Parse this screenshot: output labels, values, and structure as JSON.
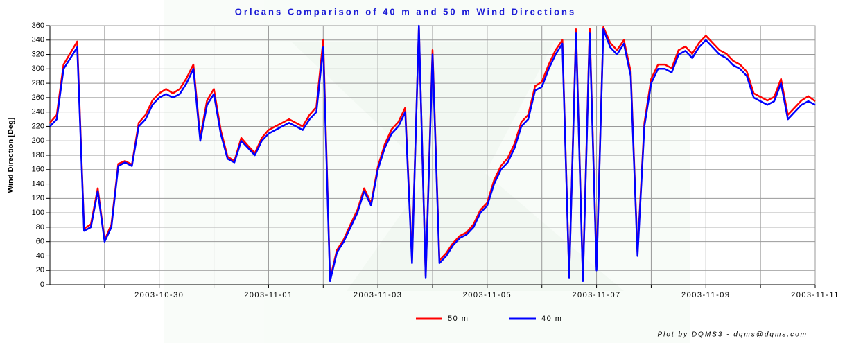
{
  "chart_data": {
    "type": "line",
    "title": "Orleans Comparison of 40 m and 50 m Wind Directions",
    "y_label": "Wind Direction [Deg]",
    "footer": "Plot by DQMS3 - dqms@dqms.com",
    "grid": true,
    "legend": "bottom",
    "xlim": [
      "2003-10-28 00:00",
      "2003-11-11 00:00"
    ],
    "xticks": [
      {
        "value": "2003-10-29",
        "label": null
      },
      "2003-10-30",
      {
        "value": "2003-10-31",
        "label": null
      },
      "2003-11-01",
      {
        "value": "2003-11-02",
        "label": null
      },
      "2003-11-03",
      {
        "value": "2003-11-04",
        "label": null
      },
      "2003-11-05",
      {
        "value": "2003-11-06",
        "label": null
      },
      "2003-11-07",
      {
        "value": "2003-11-08",
        "label": null
      },
      "2003-11-09",
      {
        "value": "2003-11-10",
        "label": null
      },
      "2003-11-11"
    ],
    "ylim": [
      0,
      360
    ],
    "yticks": [
      0,
      20,
      40,
      60,
      80,
      100,
      120,
      140,
      160,
      180,
      200,
      220,
      240,
      260,
      280,
      300,
      320,
      340,
      360
    ],
    "x": [
      "2003-10-28 00:00",
      "2003-10-28 03:00",
      "2003-10-28 06:00",
      "2003-10-28 09:00",
      "2003-10-28 12:00",
      "2003-10-28 15:00",
      "2003-10-28 18:00",
      "2003-10-28 21:00",
      "2003-10-29 00:00",
      "2003-10-29 03:00",
      "2003-10-29 06:00",
      "2003-10-29 09:00",
      "2003-10-29 12:00",
      "2003-10-29 15:00",
      "2003-10-29 18:00",
      "2003-10-29 21:00",
      "2003-10-30 00:00",
      "2003-10-30 03:00",
      "2003-10-30 06:00",
      "2003-10-30 09:00",
      "2003-10-30 12:00",
      "2003-10-30 15:00",
      "2003-10-30 18:00",
      "2003-10-30 21:00",
      "2003-10-31 00:00",
      "2003-10-31 03:00",
      "2003-10-31 06:00",
      "2003-10-31 09:00",
      "2003-10-31 12:00",
      "2003-10-31 15:00",
      "2003-10-31 18:00",
      "2003-10-31 21:00",
      "2003-11-01 00:00",
      "2003-11-01 03:00",
      "2003-11-01 06:00",
      "2003-11-01 09:00",
      "2003-11-01 12:00",
      "2003-11-01 15:00",
      "2003-11-01 18:00",
      "2003-11-01 21:00",
      "2003-11-02 00:00",
      "2003-11-02 03:00",
      "2003-11-02 06:00",
      "2003-11-02 09:00",
      "2003-11-02 12:00",
      "2003-11-02 15:00",
      "2003-11-02 18:00",
      "2003-11-02 21:00",
      "2003-11-03 00:00",
      "2003-11-03 03:00",
      "2003-11-03 06:00",
      "2003-11-03 09:00",
      "2003-11-03 12:00",
      "2003-11-03 15:00",
      "2003-11-03 18:00",
      "2003-11-03 21:00",
      "2003-11-04 00:00",
      "2003-11-04 03:00",
      "2003-11-04 06:00",
      "2003-11-04 09:00",
      "2003-11-04 12:00",
      "2003-11-04 15:00",
      "2003-11-04 18:00",
      "2003-11-04 21:00",
      "2003-11-05 00:00",
      "2003-11-05 03:00",
      "2003-11-05 06:00",
      "2003-11-05 09:00",
      "2003-11-05 12:00",
      "2003-11-05 15:00",
      "2003-11-05 18:00",
      "2003-11-05 21:00",
      "2003-11-06 00:00",
      "2003-11-06 03:00",
      "2003-11-06 06:00",
      "2003-11-06 09:00",
      "2003-11-06 12:00",
      "2003-11-06 15:00",
      "2003-11-06 18:00",
      "2003-11-06 21:00",
      "2003-11-07 00:00",
      "2003-11-07 03:00",
      "2003-11-07 06:00",
      "2003-11-07 09:00",
      "2003-11-07 12:00",
      "2003-11-07 15:00",
      "2003-11-07 18:00",
      "2003-11-07 21:00",
      "2003-11-08 00:00",
      "2003-11-08 03:00",
      "2003-11-08 06:00",
      "2003-11-08 09:00",
      "2003-11-08 12:00",
      "2003-11-08 15:00",
      "2003-11-08 18:00",
      "2003-11-08 21:00",
      "2003-11-09 00:00",
      "2003-11-09 03:00",
      "2003-11-09 06:00",
      "2003-11-09 09:00",
      "2003-11-09 12:00",
      "2003-11-09 15:00",
      "2003-11-09 18:00",
      "2003-11-09 21:00",
      "2003-11-10 00:00",
      "2003-11-10 03:00",
      "2003-11-10 06:00",
      "2003-11-10 09:00",
      "2003-11-10 12:00",
      "2003-11-10 15:00",
      "2003-11-10 18:00",
      "2003-11-10 21:00",
      "2003-11-11 00:00"
    ],
    "series": [
      {
        "name": "50 m",
        "color": "#ff0000",
        "values": [
          225,
          236,
          306,
          322,
          338,
          78,
          84,
          134,
          62,
          84,
          168,
          172,
          167,
          225,
          236,
          256,
          266,
          272,
          266,
          272,
          287,
          306,
          205,
          256,
          272,
          215,
          178,
          172,
          204,
          193,
          183,
          204,
          215,
          220,
          225,
          230,
          225,
          220,
          236,
          247,
          340,
          8,
          48,
          63,
          84,
          104,
          134,
          113,
          164,
          195,
          216,
          226,
          246,
          35,
          358,
          12,
          326,
          34,
          44,
          58,
          68,
          73,
          84,
          104,
          114,
          145,
          165,
          176,
          196,
          226,
          236,
          276,
          282,
          306,
          326,
          340,
          12,
          355,
          8,
          356,
          25,
          358,
          336,
          326,
          340,
          296,
          45,
          225,
          286,
          306,
          306,
          301,
          326,
          331,
          321,
          336,
          346,
          336,
          326,
          321,
          311,
          306,
          296,
          266,
          261,
          256,
          261,
          286,
          236,
          246,
          256,
          262,
          255
        ]
      },
      {
        "name": "40 m",
        "color": "#0000ff",
        "values": [
          220,
          230,
          300,
          315,
          330,
          75,
          80,
          130,
          60,
          80,
          165,
          170,
          165,
          220,
          230,
          250,
          260,
          265,
          260,
          265,
          280,
          300,
          200,
          250,
          265,
          210,
          175,
          170,
          200,
          190,
          180,
          200,
          210,
          215,
          220,
          225,
          220,
          215,
          230,
          240,
          330,
          5,
          45,
          60,
          80,
          100,
          130,
          110,
          160,
          190,
          210,
          220,
          240,
          30,
          360,
          10,
          320,
          30,
          40,
          55,
          65,
          70,
          80,
          100,
          110,
          140,
          160,
          170,
          190,
          220,
          230,
          270,
          275,
          300,
          320,
          335,
          10,
          350,
          5,
          350,
          20,
          355,
          330,
          320,
          335,
          290,
          40,
          220,
          280,
          300,
          300,
          295,
          320,
          325,
          315,
          330,
          340,
          330,
          320,
          315,
          305,
          300,
          290,
          260,
          255,
          250,
          255,
          280,
          230,
          240,
          250,
          255,
          250
        ]
      }
    ]
  }
}
